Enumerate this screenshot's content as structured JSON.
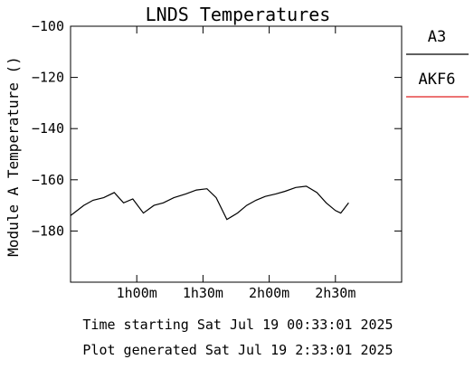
{
  "chart_data": {
    "type": "line",
    "title": "LNDS Temperatures",
    "xlabel": "",
    "ylabel": "Module A Temperature ()",
    "xlim": [
      0.0,
      2.5
    ],
    "ylim": [
      -200,
      -100
    ],
    "x_ticks": [
      {
        "value": 0.5,
        "label": "1h00m"
      },
      {
        "value": 1.0,
        "label": "1h30m"
      },
      {
        "value": 1.5,
        "label": "2h00m"
      },
      {
        "value": 2.0,
        "label": "2h30m"
      }
    ],
    "y_ticks": [
      {
        "value": -100,
        "label": "−100"
      },
      {
        "value": -120,
        "label": "−120"
      },
      {
        "value": -140,
        "label": "−140"
      },
      {
        "value": -160,
        "label": "−160"
      },
      {
        "value": -180,
        "label": "−180"
      }
    ],
    "grid": false,
    "legend_position": "right",
    "series": [
      {
        "name": "A3",
        "color": "#000000",
        "x": [
          0.0,
          0.1,
          0.17,
          0.25,
          0.33,
          0.4,
          0.47,
          0.55,
          0.63,
          0.7,
          0.78,
          0.87,
          0.95,
          1.03,
          1.1,
          1.18,
          1.26,
          1.33,
          1.4,
          1.47,
          1.55,
          1.62,
          1.7,
          1.78,
          1.86,
          1.93,
          2.0,
          2.04,
          2.1
        ],
        "y": [
          -174,
          -170,
          -168,
          -167,
          -165,
          -169,
          -167.5,
          -173,
          -170,
          -169,
          -167,
          -165.5,
          -164,
          -163.5,
          -167,
          -175.5,
          -173,
          -170,
          -168,
          -166.5,
          -165.5,
          -164.5,
          -163,
          -162.5,
          -165,
          -169,
          -172,
          -173,
          -169
        ]
      },
      {
        "name": "AKF6",
        "color": "#e02020",
        "x": [],
        "y": []
      }
    ],
    "footer_lines": [
      "Time starting Sat Jul 19  00:33:01  2025",
      "Plot generated Sat Jul 19   2:33:01  2025"
    ]
  }
}
